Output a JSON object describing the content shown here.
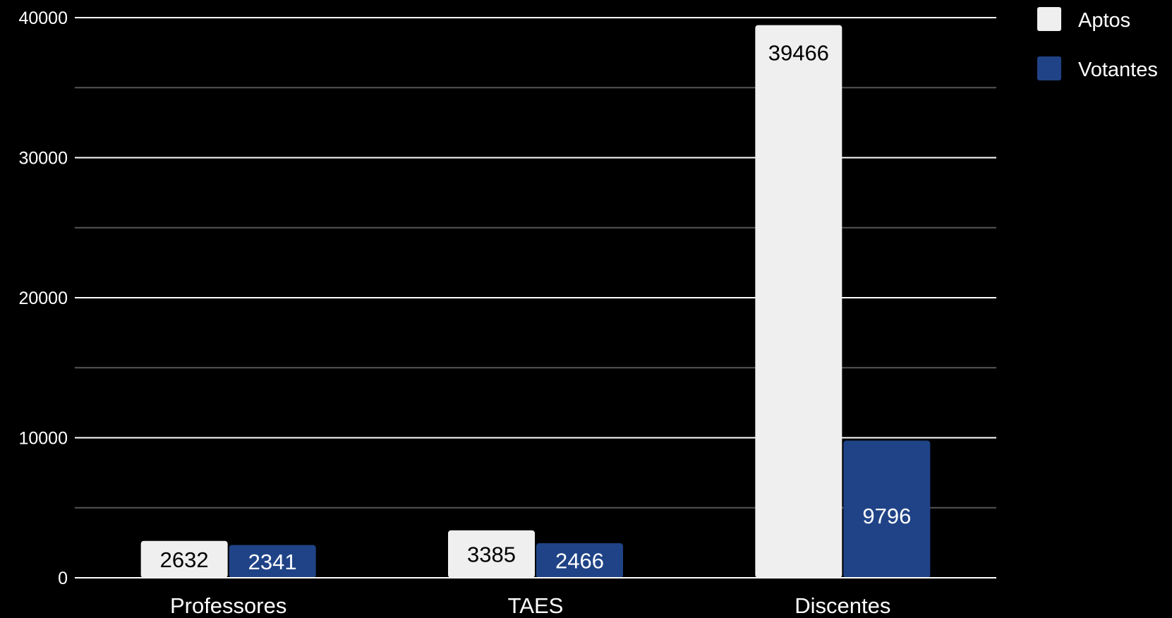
{
  "chart_data": {
    "type": "bar",
    "title": "",
    "xlabel": "",
    "ylabel": "",
    "categories": [
      "Professores",
      "TAES",
      "Discentes"
    ],
    "series": [
      {
        "name": "Aptos",
        "values": [
          2632,
          3385,
          39466
        ],
        "color": "#efefef",
        "label_color": "#000000"
      },
      {
        "name": "Votantes",
        "values": [
          2341,
          2466,
          9796
        ],
        "color": "#1f4386",
        "label_color": "#ffffff"
      }
    ],
    "ylim": [
      0,
      40000
    ],
    "yticks": [
      0,
      10000,
      20000,
      30000,
      40000
    ],
    "y_tick_labels": [
      "0",
      "10000",
      "20000",
      "30000",
      "40000"
    ],
    "minor_gridlines": true,
    "grid": true,
    "legend": "right",
    "background": "#000000",
    "gridline_color": "#ffffff",
    "minor_gridline_color": "#555555"
  }
}
